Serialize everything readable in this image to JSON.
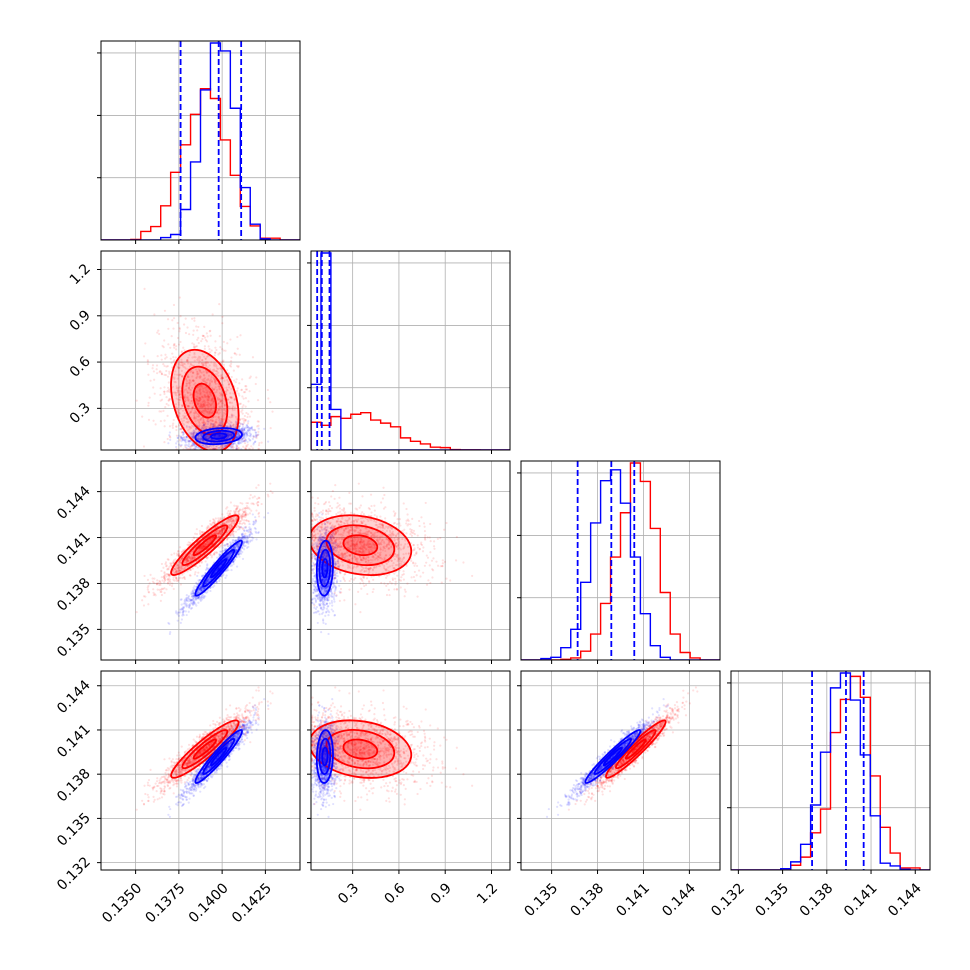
{
  "chart_data": {
    "type": "corner",
    "title": "",
    "grid": true,
    "colors": {
      "series_a": "#0000ff",
      "series_b": "#ff0000"
    },
    "series": [
      {
        "color": "#0000ff",
        "means": [
          0.1398,
          0.12,
          0.139,
          0.1392
        ],
        "stds": [
          0.0009,
          0.035,
          0.0012,
          0.0012
        ],
        "corr": [
          [
            1,
            0.2,
            0.95,
            0.95
          ],
          [
            0.2,
            1,
            0.1,
            0.1
          ],
          [
            0.95,
            0.1,
            1,
            0.96
          ],
          [
            0.95,
            0.1,
            0.96,
            1
          ]
        ],
        "quantiles": [
          [
            0.1376,
            0.1398,
            0.1411
          ],
          [
            0.07,
            0.1,
            0.15
          ],
          [
            0.1367,
            0.1389,
            0.1404
          ],
          [
            0.137,
            0.1393,
            0.1405
          ]
        ]
      },
      {
        "color": "#ff0000",
        "means": [
          0.139,
          0.35,
          0.1405,
          0.1397
        ],
        "stds": [
          0.0013,
          0.22,
          0.0013,
          0.0013
        ],
        "corr": [
          [
            1,
            -0.3,
            0.92,
            0.92
          ],
          [
            -0.3,
            1,
            -0.2,
            -0.2
          ],
          [
            0.92,
            -0.2,
            1,
            0.95
          ],
          [
            0.92,
            -0.2,
            0.95,
            1
          ]
        ]
      }
    ],
    "params": [
      {
        "range": [
          0.133,
          0.1445
        ],
        "ticks": [
          0.135,
          0.1375,
          0.14,
          0.1425
        ],
        "tick_labels": [
          "0.1350",
          "0.1375",
          "0.1400",
          "0.1425"
        ]
      },
      {
        "range": [
          0.03,
          1.32
        ],
        "ticks": [
          0.3,
          0.6,
          0.9,
          1.2
        ],
        "tick_labels": [
          "0.3",
          "0.6",
          "0.9",
          "1.2"
        ]
      },
      {
        "range": [
          0.133,
          0.146
        ],
        "ticks": [
          0.135,
          0.138,
          0.141,
          0.144
        ],
        "tick_labels": [
          "0.135",
          "0.138",
          "0.141",
          "0.144"
        ]
      },
      {
        "range": [
          0.1315,
          0.145
        ],
        "ticks": [
          0.132,
          0.135,
          0.138,
          0.141,
          0.144
        ],
        "tick_labels": [
          "0.132",
          "0.135",
          "0.138",
          "0.141",
          "0.144"
        ]
      }
    ]
  }
}
